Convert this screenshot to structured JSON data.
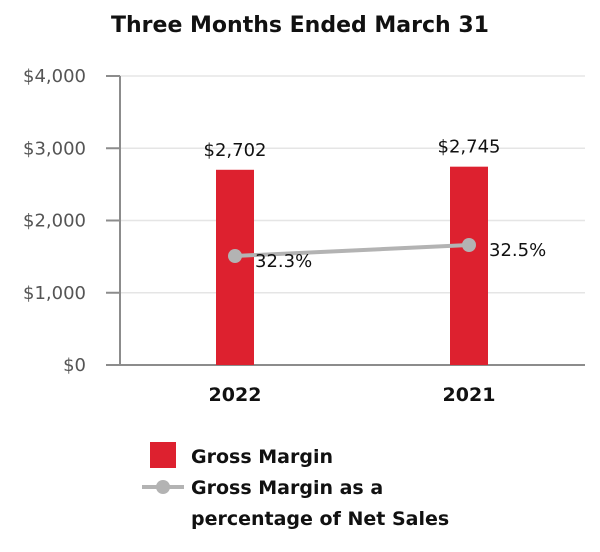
{
  "chart_data": {
    "type": "bar",
    "title": "Three Months Ended March 31",
    "categories": [
      "2022",
      "2021"
    ],
    "ylim": [
      0,
      4000
    ],
    "yticks": [
      0,
      1000,
      2000,
      3000,
      4000
    ],
    "ytick_labels": [
      "$0",
      "$1,000",
      "$2,000",
      "$3,000",
      "$4,000"
    ],
    "grid": true,
    "series": [
      {
        "name": "Gross Margin",
        "type": "bar",
        "values": [
          2702,
          2745
        ],
        "data_labels": [
          "$2,702",
          "$2,745"
        ],
        "color": "#dd212f"
      },
      {
        "name": "Gross Margin as a percentage of Net Sales",
        "name_lines": [
          "Gross Margin as a",
          "percentage of Net Sales"
        ],
        "type": "line",
        "values": [
          32.3,
          32.5
        ],
        "data_labels": [
          "32.3%",
          "32.5%"
        ],
        "color": "#b3b3b3"
      }
    ],
    "legend": "bottom-left"
  }
}
